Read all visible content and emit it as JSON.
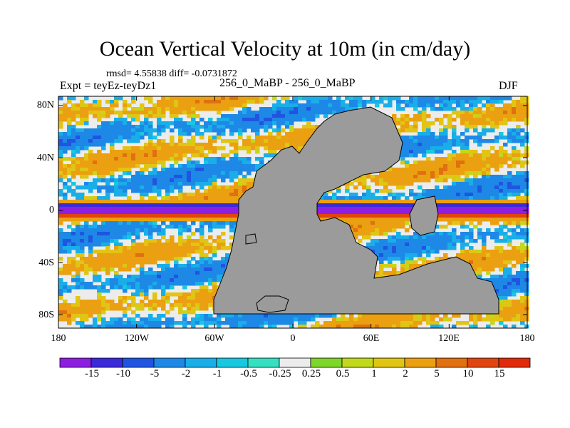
{
  "figure": {
    "title": "Ocean Vertical Velocity at 10m (in cm/day)",
    "stats": "rmsd= 4.55838 diff= -0.0731872",
    "experiment": "Expt = teyEz-teyDz1",
    "subtitle": "256_0_MaBP - 256_0_MaBP",
    "season": "DJF"
  },
  "axes": {
    "x_ticks": [
      "180",
      "120W",
      "60W",
      "0",
      "60E",
      "120E",
      "180"
    ],
    "y_ticks": [
      "80N",
      "40N",
      "0",
      "40S",
      "80S"
    ]
  },
  "colorbar": {
    "labels": [
      "-15",
      "-10",
      "-5",
      "-2",
      "-1",
      "-0.5",
      "-0.25",
      "0.25",
      "0.5",
      "1",
      "2",
      "5",
      "10",
      "15"
    ],
    "colors": [
      "#8c1fe0",
      "#3c2ad8",
      "#1f55e0",
      "#1e88e6",
      "#19aee8",
      "#17c8e0",
      "#35e0c0",
      "#ececec",
      "#7fd62a",
      "#c2d81c",
      "#e0c514",
      "#eaa010",
      "#e07010",
      "#e04510",
      "#e02a0a"
    ]
  },
  "map": {
    "land_color": "#9b9b9b",
    "neutral_color": "#ececec"
  }
}
